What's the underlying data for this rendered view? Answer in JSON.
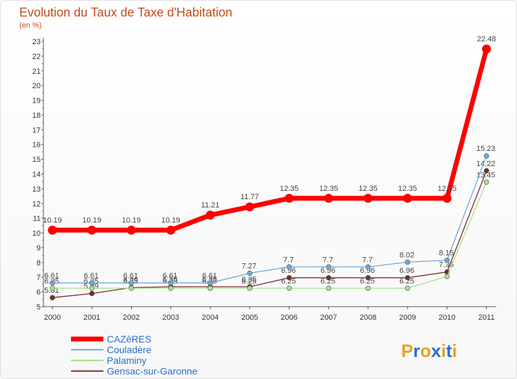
{
  "chart_data": {
    "type": "line",
    "title": "Evolution du Taux de Taxe d'Habitation",
    "subtitle": "(en %)",
    "x": [
      "2000",
      "2001",
      "2002",
      "2003",
      "2004",
      "2005",
      "2006",
      "2007",
      "2008",
      "2009",
      "2010",
      "2011"
    ],
    "ylim": [
      5,
      23
    ],
    "yticks": [
      5,
      6,
      7,
      8,
      9,
      10,
      11,
      12,
      13,
      14,
      15,
      16,
      17,
      18,
      19,
      20,
      21,
      22,
      23
    ],
    "grid": false,
    "legend_position": "bottom-left",
    "series": [
      {
        "name": "CAZèRES",
        "color": "#ff0000",
        "values": [
          10.19,
          10.19,
          10.19,
          10.19,
          11.21,
          11.77,
          12.35,
          12.35,
          12.35,
          12.35,
          12.35,
          22.48
        ],
        "labels": [
          "10.19",
          "10.19",
          "10.19",
          "10.19",
          "11.21",
          "11.77",
          "12.35",
          "12.35",
          "12.35",
          "12.35",
          "12.35",
          "22.48"
        ]
      },
      {
        "name": "Couladère",
        "color": "#6fa8d6",
        "values": [
          6.61,
          6.61,
          6.61,
          6.61,
          6.61,
          7.27,
          7.7,
          7.7,
          7.7,
          8.02,
          8.15,
          15.23
        ],
        "labels": [
          "6.61",
          "6.61",
          "6.61",
          "6.61",
          "6.61",
          "7.27",
          "7.7",
          "7.7",
          "7.7",
          "8.02",
          "8.15",
          "15.23"
        ]
      },
      {
        "name": "Palaminy",
        "color": "#a8e08a",
        "values": [
          6.25,
          6.25,
          6.25,
          6.25,
          6.25,
          6.25,
          6.25,
          6.25,
          6.25,
          6.25,
          7.05,
          13.45
        ],
        "labels": [
          "6.25",
          "6.25",
          "6.25",
          "6.25",
          "6.25",
          "6.25",
          "6.25",
          "6.25",
          "6.25",
          "6.25",
          "",
          "13.45"
        ]
      },
      {
        "name": "Gensac-sur-Garonne",
        "color": "#7a2b2b",
        "values": [
          5.61,
          5.89,
          6.29,
          6.35,
          6.35,
          6.35,
          6.96,
          6.96,
          6.96,
          6.96,
          7.35,
          14.22
        ],
        "labels": [
          "5.61",
          "5.89",
          "6.29",
          "6.35",
          "6.35",
          "6.35",
          "6.96",
          "6.96",
          "6.96",
          "6.96",
          "7.35",
          "14.22"
        ]
      }
    ]
  },
  "logo": {
    "text": "Proxiti",
    "letters": [
      "P",
      "r",
      "o",
      "x",
      "i",
      "t",
      "i"
    ],
    "colors": [
      "#e8a020",
      "#2a6fd0",
      "#e8a020",
      "#2a6fd0",
      "#e8a020",
      "#2a6fd0",
      "#e8a020"
    ]
  }
}
